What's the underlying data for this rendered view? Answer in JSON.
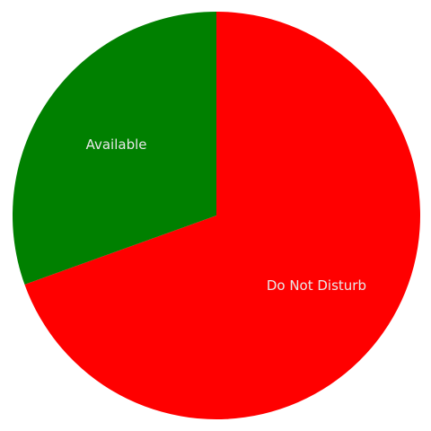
{
  "chart_data": {
    "type": "pie",
    "start_angle_deg": 0,
    "direction": "clockwise",
    "slices": [
      {
        "label": "Do Not Disturb",
        "value": 69.5,
        "color": "#ff0000"
      },
      {
        "label": "Available",
        "value": 30.5,
        "color": "#008000"
      }
    ]
  }
}
